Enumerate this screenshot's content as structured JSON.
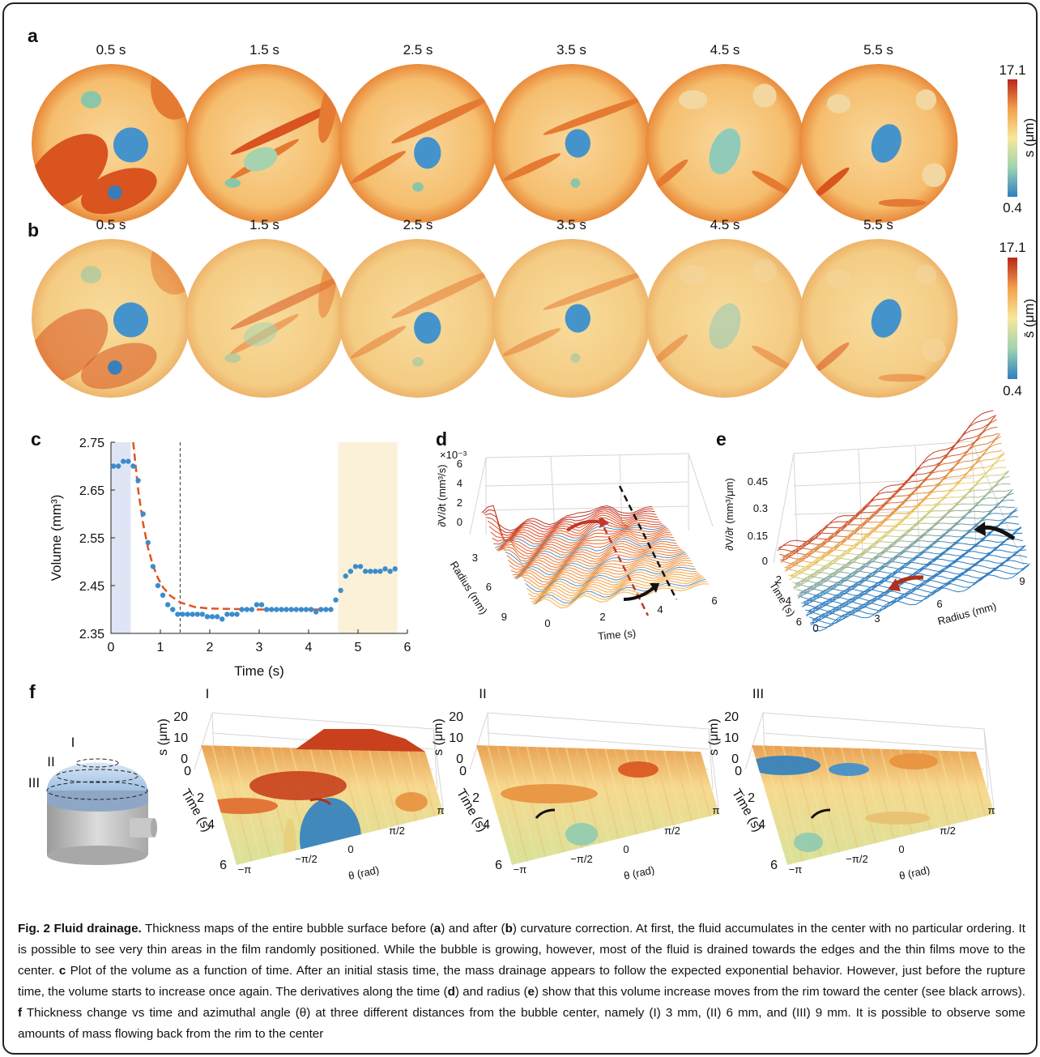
{
  "panel_a": {
    "label": "a",
    "times": [
      "0.5 s",
      "1.5 s",
      "2.5 s",
      "3.5 s",
      "4.5 s",
      "5.5 s"
    ],
    "colorbar": {
      "max": "17.1",
      "min": "0.4",
      "label": "s (μm)"
    }
  },
  "panel_b": {
    "label": "b",
    "times": [
      "0.5 s",
      "1.5 s",
      "2.5 s",
      "3.5 s",
      "4.5 s",
      "5.5 s"
    ],
    "colorbar": {
      "max": "17.1",
      "min": "0.4",
      "label": "s̄ (μm)"
    }
  },
  "panel_c": {
    "label": "c",
    "type": "scatter",
    "xlabel": "Time (s)",
    "ylabel": "Volume (mm³)",
    "x": [
      0.05,
      0.15,
      0.25,
      0.35,
      0.45,
      0.55,
      0.65,
      0.75,
      0.85,
      0.95,
      1.05,
      1.15,
      1.25,
      1.35,
      1.45,
      1.55,
      1.65,
      1.75,
      1.85,
      1.95,
      2.05,
      2.15,
      2.25,
      2.35,
      2.45,
      2.55,
      2.65,
      2.75,
      2.85,
      2.95,
      3.05,
      3.15,
      3.25,
      3.35,
      3.45,
      3.55,
      3.65,
      3.75,
      3.85,
      3.95,
      4.05,
      4.15,
      4.25,
      4.35,
      4.45,
      4.55,
      4.65,
      4.75,
      4.85,
      4.95,
      5.05,
      5.15,
      5.25,
      5.35,
      5.45,
      5.55,
      5.65,
      5.75
    ],
    "values": [
      2.7,
      2.7,
      2.71,
      2.71,
      2.7,
      2.67,
      2.6,
      2.54,
      2.49,
      2.45,
      2.43,
      2.41,
      2.4,
      2.39,
      2.39,
      2.39,
      2.39,
      2.39,
      2.39,
      2.385,
      2.385,
      2.385,
      2.38,
      2.39,
      2.39,
      2.39,
      2.4,
      2.4,
      2.4,
      2.41,
      2.41,
      2.4,
      2.4,
      2.4,
      2.4,
      2.4,
      2.4,
      2.4,
      2.4,
      2.4,
      2.4,
      2.395,
      2.4,
      2.4,
      2.4,
      2.42,
      2.44,
      2.47,
      2.48,
      2.49,
      2.49,
      2.48,
      2.48,
      2.48,
      2.48,
      2.485,
      2.48,
      2.485
    ],
    "color": "#3b8ccc",
    "fit": {
      "x": [
        0.45,
        0.55,
        0.65,
        0.75,
        0.85,
        0.95,
        1.05,
        1.2,
        1.4,
        1.7,
        2,
        3,
        4,
        4.5
      ],
      "y": [
        2.75,
        2.651,
        2.58,
        2.529,
        2.492,
        2.466,
        2.447,
        2.429,
        2.415,
        2.405,
        2.402,
        2.4,
        2.4,
        2.4
      ],
      "color": "#e0541f"
    },
    "shaded": [
      {
        "from": 0,
        "to": 0.4,
        "color": "#dfe5f4"
      },
      {
        "from": 4.6,
        "to": 5.8,
        "color": "#fbf1d8"
      }
    ],
    "vline": 1.4,
    "xlim": [
      0,
      6
    ],
    "xticks": [
      0,
      1,
      2,
      3,
      4,
      5,
      6
    ],
    "ylim": [
      2.35,
      2.75
    ],
    "yticks": [
      2.35,
      2.45,
      2.55,
      2.65,
      2.75
    ]
  },
  "panel_d": {
    "label": "d",
    "exponent": "×10⁻³",
    "zlabel": "∂V/∂t (mm³/s)",
    "zticks": [
      "6",
      "4",
      "2",
      "0"
    ],
    "ylabel": "Radius (mm)",
    "yticks": [
      "3",
      "6",
      "9"
    ],
    "xlabel": "Time (s)",
    "xticks": [
      "0",
      "2",
      "4",
      "6"
    ]
  },
  "panel_e": {
    "label": "e",
    "zlabel": "∂V/∂r (mm³/μm)",
    "zticks": [
      "0.45",
      "0.3",
      "0.15",
      "0"
    ],
    "ylabel": "Time (s)",
    "yticks": [
      "2",
      "4",
      "6"
    ],
    "xlabel": "Radius (mm)",
    "xticks": [
      "0",
      "3",
      "6",
      "9"
    ]
  },
  "panel_f": {
    "label": "f",
    "schematic_labels": [
      "I",
      "II",
      "III"
    ],
    "titles": [
      "I",
      "II",
      "III"
    ],
    "zlabel": "s (μm)",
    "zticks": [
      "20",
      "10",
      "0"
    ],
    "ylabel": "Time (s)",
    "yticks": [
      "0",
      "2",
      "4",
      "6"
    ],
    "xlabel": "θ (rad)",
    "xticks": [
      "−π",
      "−π/2",
      "0",
      "π/2",
      "π"
    ]
  },
  "caption": {
    "parts": [
      "Fig. 2 Fluid drainage.",
      " Thickness maps of the entire bubble surface before (",
      "a",
      ") and after (",
      "b",
      ") curvature correction. At first, the fluid accumulates in the center with no particular ordering. It is possible to see very thin areas in the film randomly positioned. While the bubble is growing, however, most of the fluid is drained towards the edges and the thin films move to the center. ",
      "c",
      " Plot of the volume as a function of time. After an initial stasis time, the mass drainage appears to follow the expected exponential behavior. However, just before the rupture time, the volume starts to increase once again. The derivatives along the time (",
      "d",
      ") and radius (",
      "e",
      ") show that this volume increase moves from the rim toward the center (see black arrows). ",
      "f",
      " Thickness change vs time and azimuthal angle (θ) at three different distances from the bubble center, namely (I) 3 mm, (II) 6 mm, and (III) 9 mm. It is possible to observe some amounts of mass flowing back from the rim to the center"
    ]
  }
}
